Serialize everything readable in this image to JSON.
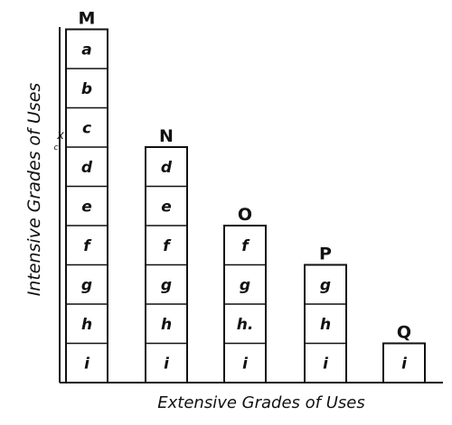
{
  "axes": {
    "y_label": "Intensive Grades of Uses",
    "x_label": "Extensive Grades of Uses",
    "y_annotation": "x",
    "y_annotation_sub": "c"
  },
  "columns": [
    {
      "name": "M",
      "cells": [
        "a",
        "b",
        "c",
        "d",
        "e",
        "f",
        "g",
        "h",
        "i"
      ]
    },
    {
      "name": "N",
      "cells": [
        "d",
        "e",
        "f",
        "g",
        "h",
        "i"
      ]
    },
    {
      "name": "O",
      "cells": [
        "f",
        "g",
        "h.",
        "i"
      ]
    },
    {
      "name": "P",
      "cells": [
        "g",
        "h",
        "i"
      ]
    },
    {
      "name": "Q",
      "cells": [
        "i"
      ]
    }
  ],
  "colors": {
    "ink": "#111111",
    "paper": "#ffffff"
  }
}
